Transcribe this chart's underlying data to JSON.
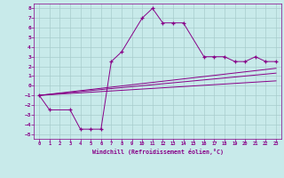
{
  "xlabel": "Windchill (Refroidissement éolien,°C)",
  "background_color": "#c8eaea",
  "grid_color": "#a8cccc",
  "line_color": "#880088",
  "xlim": [
    -0.5,
    23.5
  ],
  "ylim": [
    -5.5,
    8.5
  ],
  "xticks": [
    0,
    1,
    2,
    3,
    4,
    5,
    6,
    7,
    8,
    9,
    10,
    11,
    12,
    13,
    14,
    15,
    16,
    17,
    18,
    19,
    20,
    21,
    22,
    23
  ],
  "yticks": [
    -5,
    -4,
    -3,
    -2,
    -1,
    0,
    1,
    2,
    3,
    4,
    5,
    6,
    7,
    8
  ],
  "series1_x": [
    0,
    1,
    3,
    4,
    5,
    6,
    7,
    8,
    10,
    11,
    12,
    13,
    14,
    16,
    17,
    18,
    19,
    20,
    21,
    22,
    23
  ],
  "series1_y": [
    -1,
    -2.5,
    -2.5,
    -4.5,
    -4.5,
    -4.5,
    2.5,
    3.5,
    7.0,
    8.0,
    6.5,
    6.5,
    6.5,
    3.0,
    3.0,
    3.0,
    2.5,
    2.5,
    3.0,
    2.5,
    2.5
  ],
  "straight_lines": [
    {
      "x0": 0,
      "y0": -1.0,
      "x1": 23,
      "y1": 1.8
    },
    {
      "x0": 0,
      "y0": -1.0,
      "x1": 23,
      "y1": 1.3
    },
    {
      "x0": 0,
      "y0": -1.0,
      "x1": 23,
      "y1": 0.5
    }
  ]
}
